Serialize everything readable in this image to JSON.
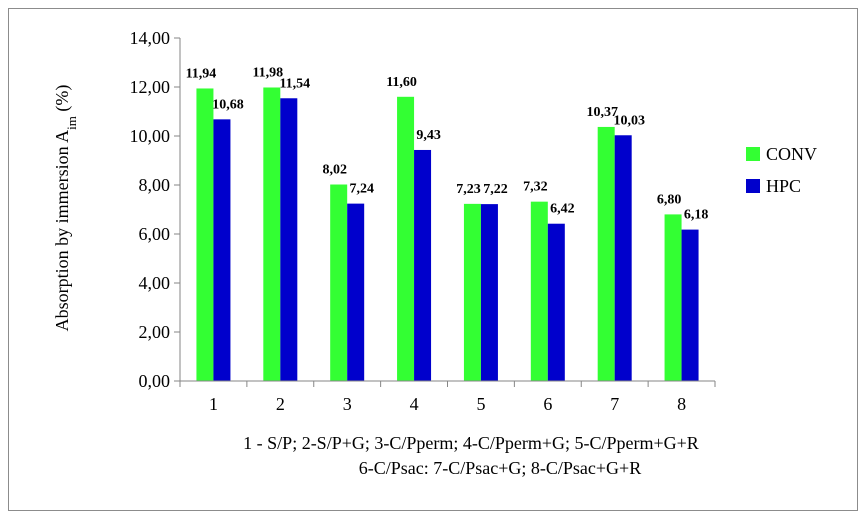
{
  "chart_data": {
    "type": "bar",
    "categories": [
      "1",
      "2",
      "3",
      "4",
      "5",
      "6",
      "7",
      "8"
    ],
    "series": [
      {
        "name": "CONV",
        "values": [
          11.94,
          11.98,
          8.02,
          11.6,
          7.23,
          7.32,
          10.37,
          6.8
        ],
        "labels": [
          "11,94",
          "11,98",
          "8,02",
          "11,60",
          "7,23",
          "7,32",
          "10,37",
          "6,80"
        ],
        "color": "#33ff33"
      },
      {
        "name": "HPC",
        "values": [
          10.68,
          11.54,
          7.24,
          9.43,
          7.22,
          6.42,
          10.03,
          6.18
        ],
        "labels": [
          "10,68",
          "11,54",
          "7,24",
          "9,43",
          "7,22",
          "6,42",
          "10,03",
          "6,18"
        ],
        "color": "#0000cc"
      }
    ],
    "ylim": [
      0,
      14
    ],
    "yticks": [
      "0,00",
      "2,00",
      "4,00",
      "6,00",
      "8,00",
      "10,00",
      "12,00",
      "14,00"
    ],
    "ylabel": "Absorption by immersion A",
    "ylabel_sub": "im",
    "ylabel_unit": " (%)",
    "xlabel_line1": "1 - S/P; 2-S/P+G; 3-C/Pperm; 4-C/Pperm+G; 5-C/Pperm+G+R",
    "xlabel_line2": "6-C/Psac: 7-C/Psac+G; 8-C/Psac+G+R",
    "grid": false,
    "legend_position": "right"
  }
}
